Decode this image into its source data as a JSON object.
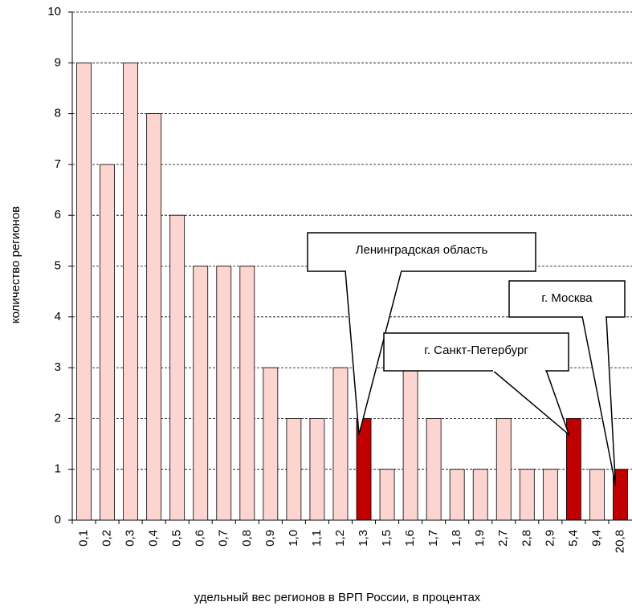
{
  "chart_data": {
    "type": "bar",
    "x_label": "удельный вес регионов в ВРП России, в процентах",
    "y_label": "количество регионов",
    "categories": [
      "0,1",
      "0,2",
      "0,3",
      "0,4",
      "0,5",
      "0,6",
      "0,7",
      "0,8",
      "0,9",
      "1,0",
      "1,1",
      "1,2",
      "1,3",
      "1,5",
      "1,6",
      "1,7",
      "1,8",
      "1,9",
      "2,7",
      "2,8",
      "2,9",
      "5,4",
      "9,4",
      "20,8"
    ],
    "values": [
      9,
      7,
      9,
      8,
      6,
      5,
      5,
      5,
      3,
      2,
      2,
      3,
      2,
      1,
      3,
      2,
      1,
      1,
      2,
      1,
      1,
      2,
      1,
      1
    ],
    "colors": [
      "#fcd5d0",
      "#fcd5d0",
      "#fcd5d0",
      "#fcd5d0",
      "#fcd5d0",
      "#fcd5d0",
      "#fcd5d0",
      "#fcd5d0",
      "#fcd5d0",
      "#fcd5d0",
      "#fcd5d0",
      "#fcd5d0",
      "#c00000",
      "#fcd5d0",
      "#fcd5d0",
      "#fcd5d0",
      "#fcd5d0",
      "#fcd5d0",
      "#fcd5d0",
      "#fcd5d0",
      "#fcd5d0",
      "#c00000",
      "#fcd5d0",
      "#c00000"
    ],
    "ylim": [
      0,
      10
    ],
    "yticks": [
      0,
      1,
      2,
      3,
      4,
      5,
      6,
      7,
      8,
      9,
      10
    ],
    "grid": true,
    "annotations": [
      {
        "text": "Ленинградская область",
        "category": "1,3"
      },
      {
        "text": "г. Санкт-Петербург",
        "category": "5,4"
      },
      {
        "text": "г. Москва",
        "category": "20,8"
      }
    ]
  }
}
